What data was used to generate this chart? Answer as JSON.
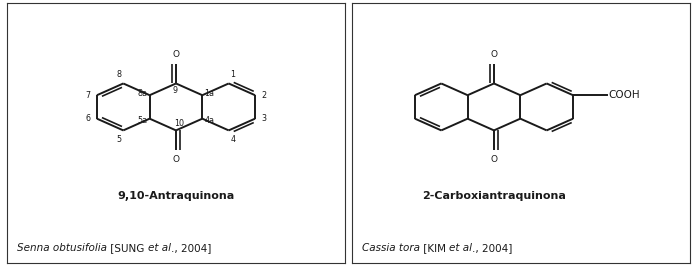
{
  "bg_color": "#ffffff",
  "border_color": "#333333",
  "line_color": "#1a1a1a",
  "text_color": "#1a1a1a",
  "title1": "9,10-Antraquinona",
  "title2": "2-Carboxiantraquinona",
  "ref1_italic": "Senna obtusifolia",
  "ref1_normal": " [SUNG ",
  "ref1_italic2": "et al",
  "ref1_normal2": "., 2004]",
  "ref2_italic": "Cassia tora",
  "ref2_normal": " [KIM ",
  "ref2_italic2": "et al",
  "ref2_normal2": "., 2004]",
  "lw": 1.4,
  "figw": 6.97,
  "figh": 2.66
}
